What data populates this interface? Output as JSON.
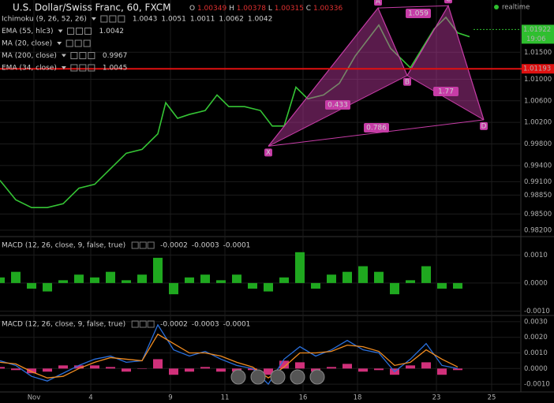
{
  "chart_data": [
    {
      "type": "line",
      "title": "U.S. Dollar/Swiss Franc, 60, FXCM",
      "ohlc": [
        {
          "label": "O",
          "value": "1.00349"
        },
        {
          "label": "H",
          "value": "1.00378"
        },
        {
          "label": "L",
          "value": "1.00315"
        },
        {
          "label": "C",
          "value": "1.00336"
        }
      ],
      "indicators": [
        {
          "name": "Ichimoku (9, 26, 52, 26)",
          "readings": [
            "1.0043",
            "1.0051",
            "1.0011",
            "1.0062",
            "1.0042"
          ],
          "reading_colors": [
            "#3b7cff",
            "#e03030",
            "#2fbf2f",
            "#2fbf2f",
            "#e03030"
          ]
        },
        {
          "name": "EMA (55, hlc3)",
          "readings": [
            "1.0042"
          ],
          "reading_colors": [
            "#ffffff"
          ]
        },
        {
          "name": "MA (20, close)",
          "readings": [],
          "reading_colors": []
        },
        {
          "name": "MA (200, close)",
          "readings": [
            "0.9967"
          ],
          "reading_colors": [
            "#aaaaaa"
          ]
        },
        {
          "name": "EMA (34, close)",
          "readings": [
            "1.0045"
          ],
          "reading_colors": [
            "#e03030"
          ]
        }
      ],
      "status": "realtime",
      "x": [
        0,
        4,
        8,
        12,
        16,
        20,
        24,
        28,
        32,
        36,
        40,
        42,
        45,
        48,
        52,
        55,
        58,
        62,
        66,
        69,
        72,
        75,
        78,
        82,
        86,
        90,
        93,
        96,
        99,
        102,
        104,
        107,
        110,
        113,
        116,
        119
      ],
      "values": [
        0.99123,
        0.98763,
        0.98619,
        0.98619,
        0.98691,
        0.98979,
        0.99051,
        0.99339,
        0.99627,
        0.99699,
        0.99987,
        1.00564,
        1.00275,
        1.00347,
        1.00419,
        1.00708,
        1.00492,
        1.00492,
        1.00419,
        1.00131,
        1.00131,
        1.00852,
        1.00636,
        1.00708,
        1.00924,
        1.01428,
        1.01716,
        1.02004,
        1.01572,
        1.01356,
        1.01212,
        1.01572,
        1.01932,
        1.02148,
        1.0186,
        1.01788
      ],
      "color": "#35c435",
      "xlim": [
        0,
        132
      ],
      "xticks": [
        {
          "value": 8.6,
          "label": "Nov"
        },
        {
          "value": 23,
          "label": "4"
        },
        {
          "value": 43.2,
          "label": "9"
        },
        {
          "value": 57,
          "label": "11"
        },
        {
          "value": 76.8,
          "label": "16"
        },
        {
          "value": 90.6,
          "label": "18"
        },
        {
          "value": 110.6,
          "label": "23"
        },
        {
          "value": 124.6,
          "label": "25"
        }
      ],
      "ylim": [
        0.9811,
        1.0244
      ],
      "yticks": [
        {
          "value": 1.015,
          "label": "1.01500"
        },
        {
          "value": 1.01,
          "label": "1.01000"
        },
        {
          "value": 1.006,
          "label": "1.00600"
        },
        {
          "value": 1.002,
          "label": "1.00200"
        },
        {
          "value": 0.998,
          "label": "0.99800"
        },
        {
          "value": 0.994,
          "label": "0.99400"
        },
        {
          "value": 0.991,
          "label": "0.99100"
        },
        {
          "value": 0.9885,
          "label": "0.98850"
        },
        {
          "value": 0.985,
          "label": "0.98500"
        },
        {
          "value": 0.982,
          "label": "0.98200"
        }
      ],
      "price_line": 1.01193,
      "last_price": 1.01922,
      "last_time": "19:06",
      "pattern": {
        "labels": [
          "X",
          "A",
          "B",
          "C",
          "D"
        ],
        "x": [
          68,
          95.8,
          103.2,
          113.6,
          122.6
        ],
        "values": [
          0.99757,
          1.02321,
          1.01068,
          1.02364,
          1.00247
        ],
        "ratios": [
          0.433,
          1.059,
          1.77,
          0.786
        ],
        "color": "#c63ca6"
      }
    },
    {
      "type": "bar",
      "title": "MACD (12, 26, close, 9, false, true)",
      "readings": [
        "-0.0002",
        "-0.0003",
        "-0.0001"
      ],
      "reading_colors": [
        "#2fbf2f",
        "#3b7cff",
        "#f08c20"
      ],
      "x": [
        0,
        4,
        8,
        12,
        16,
        20,
        24,
        28,
        32,
        36,
        40,
        44,
        48,
        52,
        56,
        60,
        64,
        68,
        72,
        76,
        80,
        84,
        88,
        92,
        96,
        100,
        104,
        108,
        112,
        116
      ],
      "values": [
        0.0002,
        0.0004,
        -0.0002,
        -0.0003,
        0.0001,
        0.0003,
        0.0002,
        0.0004,
        0.0001,
        0.0003,
        0.0009,
        -0.0004,
        0.0002,
        0.0003,
        0.0001,
        0.0003,
        -0.0002,
        -0.0003,
        0.0002,
        0.0011,
        -0.0002,
        0.0003,
        0.0004,
        0.0006,
        0.0004,
        -0.0004,
        0.0001,
        0.0006,
        -0.0002,
        -0.0002
      ],
      "color": "#1fa81f",
      "xlim": [
        0,
        132
      ],
      "ylim": [
        -0.0011,
        0.0016
      ],
      "yticks": [
        {
          "value": 0.001,
          "label": "0.0010"
        },
        {
          "value": 0,
          "label": "0.0000"
        },
        {
          "value": -0.001,
          "label": "-0.0010"
        }
      ]
    },
    {
      "type": "line",
      "title": "MACD (12, 26, close, 9, false, true)",
      "readings": [
        "-0.0002",
        "-0.0003",
        "-0.0001"
      ],
      "reading_colors": [
        "#d0307a",
        "#3b7cff",
        "#f08c20"
      ],
      "x": [
        0,
        4,
        8,
        12,
        16,
        20,
        24,
        28,
        32,
        36,
        40,
        44,
        48,
        52,
        56,
        60,
        64,
        68,
        72,
        76,
        80,
        84,
        88,
        92,
        96,
        100,
        104,
        108,
        112,
        116
      ],
      "series": [
        {
          "color": "#2a6fdb",
          "values": [
            0.0005,
            0.0002,
            -0.0005,
            -0.0008,
            -0.0003,
            0.0002,
            0.0006,
            0.0008,
            0.0004,
            0.0005,
            0.0028,
            0.0012,
            0.0008,
            0.0011,
            0.0006,
            0.0002,
            0,
            -0.001,
            0.0006,
            0.0014,
            0.0008,
            0.0012,
            0.0018,
            0.0012,
            0.001,
            -0.0002,
            0.0006,
            0.0016,
            0.0002,
            0
          ]
        },
        {
          "color": "#f08c20",
          "values": [
            0.0004,
            0.0003,
            -0.0002,
            -0.0006,
            -0.0005,
            0,
            0.0004,
            0.0007,
            0.0006,
            0.0005,
            0.0022,
            0.0016,
            0.001,
            0.001,
            0.0008,
            0.0004,
            0.0001,
            -0.0006,
            0.0001,
            0.001,
            0.001,
            0.0011,
            0.0015,
            0.0014,
            0.0011,
            0.0002,
            0.0004,
            0.0012,
            0.0006,
            0.0001
          ]
        }
      ],
      "histogram": {
        "color": "#d0307a",
        "values": [
          0.0001,
          -0.0001,
          -0.0003,
          -0.0002,
          0.0002,
          0.0002,
          0.0002,
          0.0001,
          -0.0002,
          0,
          0.0006,
          -0.0004,
          -0.0002,
          0.0001,
          -0.0002,
          -0.0002,
          -0.0001,
          -0.0004,
          0.0005,
          0.0004,
          -0.0002,
          0.0001,
          0.0003,
          -0.0002,
          -0.0001,
          -0.0004,
          0.0002,
          0.0004,
          -0.0004,
          -0.0001
        ]
      },
      "xlim": [
        0,
        132
      ],
      "ylim": [
        -0.0014,
        0.0033
      ],
      "yticks": [
        {
          "value": 0.003,
          "label": "0.0030"
        },
        {
          "value": 0.002,
          "label": "0.0020"
        },
        {
          "value": 0.001,
          "label": "0.0010"
        },
        {
          "value": 0,
          "label": "0.0000"
        },
        {
          "value": -0.001,
          "label": "-0.0010"
        }
      ]
    }
  ]
}
